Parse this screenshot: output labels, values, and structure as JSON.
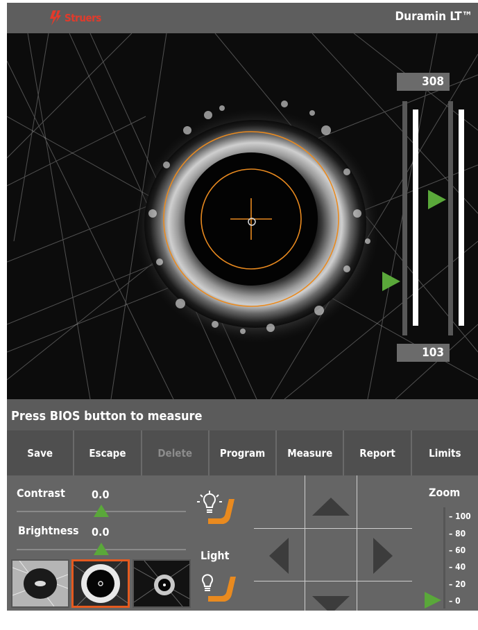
{
  "header": {
    "brand": "Struers",
    "product": "Duramin LT™"
  },
  "viewer": {
    "upper_value": "308",
    "lower_value": "103",
    "left_marker_level": 0.23,
    "right_marker_level": 0.58
  },
  "status": {
    "message": "Press BIOS button to measure"
  },
  "toolbar": {
    "buttons": [
      {
        "label": "Save",
        "enabled": true
      },
      {
        "label": "Escape",
        "enabled": true
      },
      {
        "label": "Delete",
        "enabled": false
      },
      {
        "label": "Program",
        "enabled": true
      },
      {
        "label": "Measure",
        "enabled": true
      },
      {
        "label": "Report",
        "enabled": true
      },
      {
        "label": "Limits",
        "enabled": true
      }
    ]
  },
  "controls": {
    "contrast": {
      "label": "Contrast",
      "value": "0.0"
    },
    "brightness": {
      "label": "Brightness",
      "value": "0.0"
    },
    "light": {
      "label": "Light"
    },
    "zoom": {
      "label": "Zoom",
      "ticks": [
        "100",
        "80",
        "60",
        "40",
        "20",
        "0"
      ],
      "current": "0"
    },
    "thumbnails_selected_index": 1
  },
  "colors": {
    "accent_orange": "#e98a1f",
    "marker_green": "#5aa83a",
    "brand_red": "#e23a2b"
  }
}
